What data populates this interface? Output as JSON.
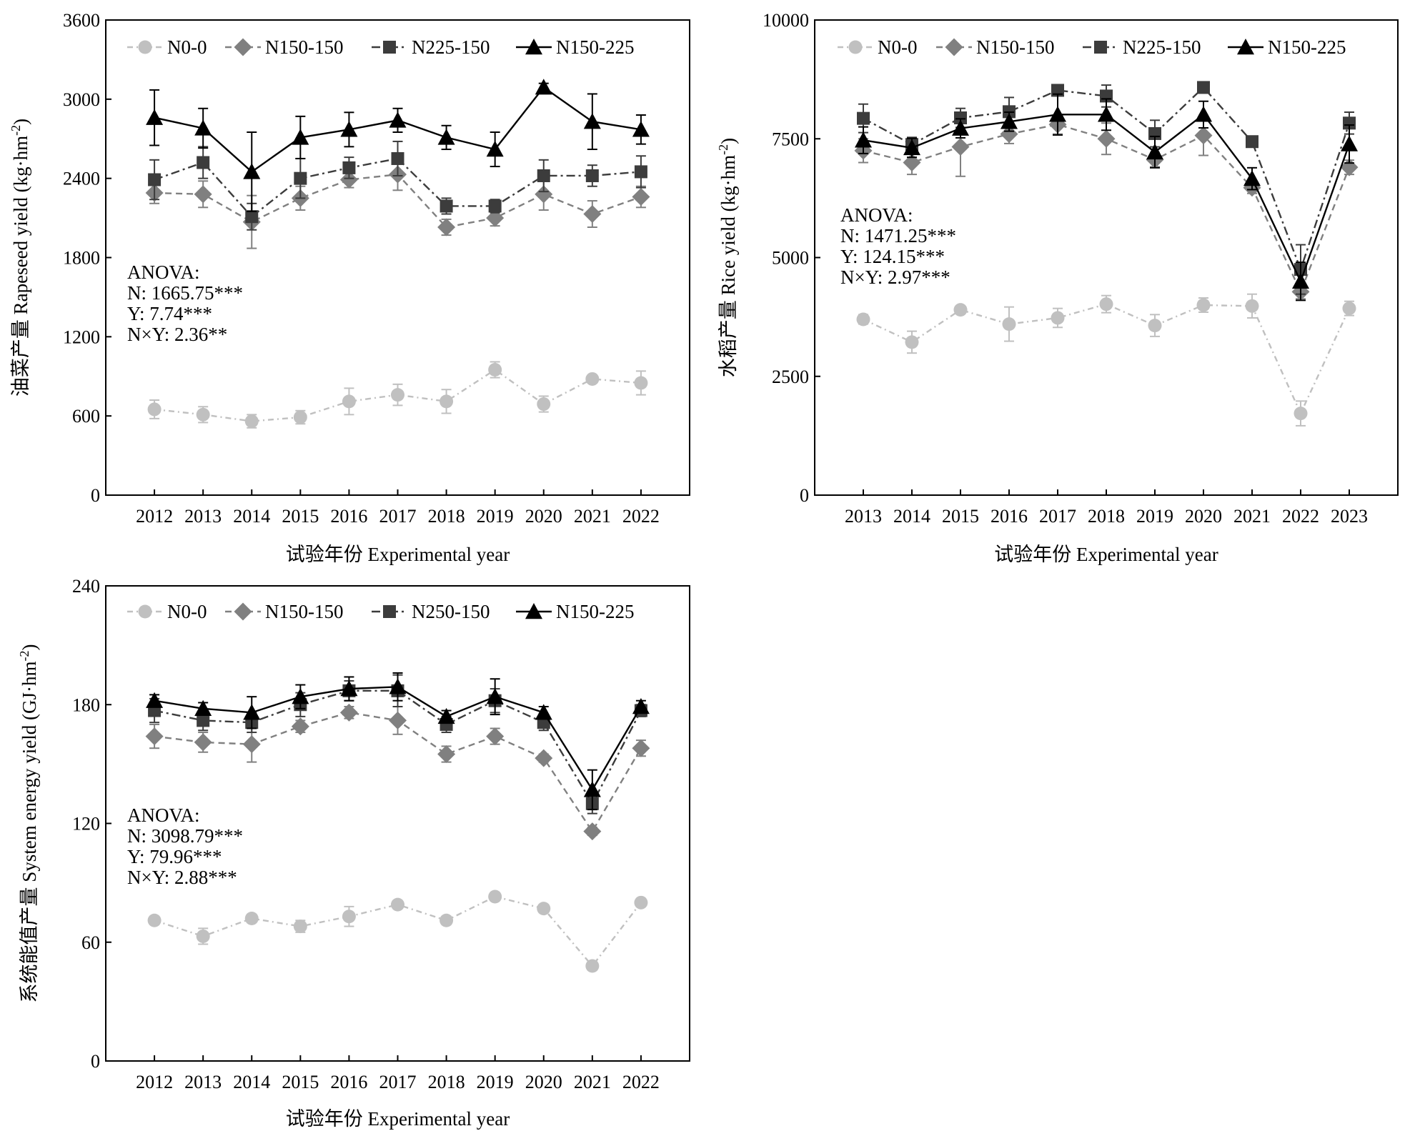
{
  "chart_data": [
    {
      "type": "line",
      "xlabel": "试验年份 Experimental year",
      "ylabel": "油菜产量 Rapeseed yield (kg·hm-2)",
      "ylabel_main": "油菜产量 Rapeseed yield (kg·hm",
      "ylabel_sup": "-2",
      "ylabel_close": ")",
      "ylim": [
        0,
        3600
      ],
      "yticks": [
        "0",
        "600",
        "1200",
        "1800",
        "2400",
        "3000",
        "3600"
      ],
      "categories": [
        "2012",
        "2013",
        "2014",
        "2015",
        "2016",
        "2017",
        "2018",
        "2019",
        "2020",
        "2021",
        "2022"
      ],
      "grid": false,
      "legend_position": "top",
      "series": [
        {
          "name": "N0-0",
          "values": [
            650,
            610,
            560,
            590,
            710,
            760,
            710,
            950,
            690,
            880,
            850
          ],
          "errors": [
            70,
            60,
            50,
            50,
            100,
            80,
            90,
            60,
            60,
            30,
            90
          ]
        },
        {
          "name": "N150-150",
          "values": [
            2290,
            2280,
            2070,
            2250,
            2390,
            2430,
            2030,
            2100,
            2280,
            2130,
            2260
          ],
          "errors": [
            80,
            100,
            200,
            90,
            60,
            120,
            60,
            60,
            120,
            100,
            80
          ]
        },
        {
          "name": "N225-150",
          "values": [
            2390,
            2520,
            2110,
            2400,
            2480,
            2550,
            2190,
            2190,
            2420,
            2420,
            2450
          ],
          "errors": [
            150,
            120,
            100,
            150,
            80,
            130,
            60,
            50,
            120,
            80,
            120
          ]
        },
        {
          "name": "N150-225",
          "values": [
            2860,
            2780,
            2450,
            2710,
            2770,
            2840,
            2710,
            2620,
            3090,
            2830,
            2770
          ],
          "errors": [
            210,
            150,
            300,
            160,
            130,
            90,
            90,
            130,
            30,
            210,
            110
          ]
        }
      ],
      "anova": [
        "ANOVA:",
        "N: 1665.75***",
        "Y: 7.74***",
        "N×Y: 2.36**"
      ]
    },
    {
      "type": "line",
      "xlabel": "试验年份 Experimental year",
      "ylabel": "水稻产量 Rice yield (kg·hm-2)",
      "ylabel_main": "水稻产量 Rice yield (kg·hm",
      "ylabel_sup": "-2",
      "ylabel_close": ")",
      "ylim": [
        0,
        10000
      ],
      "yticks": [
        "0",
        "2500",
        "5000",
        "7500",
        "10000"
      ],
      "categories": [
        "2013",
        "2014",
        "2015",
        "2016",
        "2017",
        "2018",
        "2019",
        "2020",
        "2021",
        "2022",
        "2023"
      ],
      "grid": false,
      "legend_position": "top",
      "series": [
        {
          "name": "N0-0",
          "values": [
            3700,
            3220,
            3900,
            3600,
            3730,
            4020,
            3570,
            4000,
            3980,
            1720,
            3930
          ],
          "errors": [
            100,
            230,
            80,
            360,
            200,
            180,
            230,
            150,
            250,
            260,
            150
          ]
        },
        {
          "name": "N150-150",
          "values": [
            7250,
            7000,
            7330,
            7600,
            7800,
            7500,
            7060,
            7570,
            6470,
            4280,
            6900
          ],
          "errors": [
            250,
            250,
            620,
            200,
            200,
            330,
            150,
            420,
            120,
            150,
            150
          ]
        },
        {
          "name": "N225-150",
          "values": [
            7930,
            7380,
            7940,
            8070,
            8520,
            8400,
            7610,
            8580,
            7440,
            4750,
            7830
          ],
          "errors": [
            300,
            150,
            200,
            300,
            100,
            230,
            280,
            80,
            80,
            520,
            230
          ]
        },
        {
          "name": "N150-225",
          "values": [
            7470,
            7310,
            7720,
            7860,
            8010,
            8010,
            7220,
            8010,
            6660,
            4500,
            7390
          ],
          "errors": [
            280,
            200,
            200,
            200,
            430,
            330,
            330,
            280,
            230,
            400,
            400
          ]
        }
      ],
      "anova": [
        "ANOVA:",
        "N: 1471.25***",
        "Y: 124.15***",
        "N×Y: 2.97***"
      ]
    },
    {
      "type": "line",
      "xlabel": "试验年份 Experimental year",
      "ylabel": "系统能值产量 System energy yield (GJ·hm-2)",
      "ylabel_main": "系统能值产量 System energy yield (GJ·hm",
      "ylabel_sup": "-2",
      "ylabel_close": ")",
      "ylim": [
        0,
        240
      ],
      "yticks": [
        "0",
        "60",
        "120",
        "180",
        "240"
      ],
      "categories": [
        "2012",
        "2013",
        "2014",
        "2015",
        "2016",
        "2017",
        "2018",
        "2019",
        "2020",
        "2021",
        "2022"
      ],
      "grid": false,
      "legend_position": "top",
      "series": [
        {
          "name": "N0-0",
          "values": [
            71,
            63,
            72,
            68,
            73,
            79,
            71,
            83,
            77,
            48,
            80
          ],
          "errors": [
            2,
            4,
            2,
            3,
            5,
            2,
            2,
            2,
            2,
            2,
            2
          ]
        },
        {
          "name": "N150-150",
          "values": [
            164,
            161,
            160,
            169,
            176,
            172,
            155,
            164,
            153,
            116,
            158
          ],
          "errors": [
            6,
            5,
            9,
            3,
            3,
            7,
            4,
            4,
            2,
            2,
            4
          ]
        },
        {
          "name": "N250-150",
          "values": [
            177,
            172,
            171,
            180,
            187,
            187,
            170,
            182,
            171,
            130,
            177
          ],
          "errors": [
            6,
            5,
            5,
            6,
            5,
            8,
            4,
            6,
            4,
            5,
            3
          ]
        },
        {
          "name": "N150-225",
          "values": [
            182,
            178,
            176,
            184,
            188,
            189,
            174,
            184,
            176,
            137,
            179
          ],
          "errors": [
            3,
            3,
            8,
            6,
            6,
            7,
            3,
            9,
            3,
            10,
            3
          ]
        }
      ],
      "anova": [
        "ANOVA:",
        "N: 3098.79***",
        "Y: 79.96***",
        "N×Y: 2.88***"
      ]
    }
  ],
  "styles": {
    "N0-0": {
      "color": "#c0c0c0",
      "dash": "8,5,2,5",
      "marker": "circle"
    },
    "N150-150": {
      "color": "#808080",
      "dash": "9,6",
      "marker": "diamond"
    },
    "N225-150": {
      "color": "#3c3c3c",
      "dash": "12,5,3,5",
      "marker": "square"
    },
    "N250-150": {
      "color": "#3c3c3c",
      "dash": "12,5,3,5",
      "marker": "square"
    },
    "N150-225": {
      "color": "#000000",
      "dash": "",
      "marker": "triangle"
    }
  }
}
